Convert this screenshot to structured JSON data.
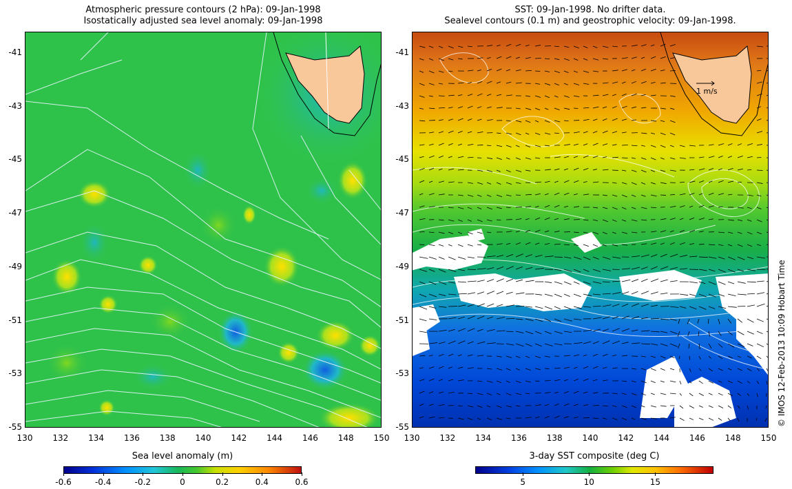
{
  "left_panel": {
    "title_line1": "Atmospheric pressure contours (2 hPa): 09-Jan-1998",
    "title_line2": "Isostatically adjusted sea level anomaly: 09-Jan-1998",
    "colorbar_label": "Sea level anomaly (m)",
    "colorbar_ticks": [
      "-0.6",
      "-0.4",
      "-0.2",
      "0",
      "0.2",
      "0.4",
      "0.6"
    ]
  },
  "right_panel": {
    "title_line1": "SST: 09-Jan-1998. No drifter data.",
    "title_line2": "Sealevel contours (0.1 m) and geostrophic velocity: 09-Jan-1998.",
    "colorbar_label": "3-day SST composite (deg C)",
    "colorbar_ticks": [
      "5",
      "10",
      "15"
    ],
    "velocity_scale_label": "1 m/s"
  },
  "axes": {
    "x_ticks": [
      "130",
      "132",
      "134",
      "136",
      "138",
      "140",
      "142",
      "144",
      "146",
      "148",
      "150"
    ],
    "y_ticks": [
      "-41",
      "-43",
      "-45",
      "-47",
      "-49",
      "-51",
      "-53",
      "-55"
    ],
    "x_range": [
      130,
      150
    ],
    "y_range": [
      -55,
      -40.2
    ]
  },
  "credit": "© IMOS 12-Feb-2013 10:09 Hobart Time",
  "colors": {
    "land": "#f9c89a",
    "sst_warm": "#e07010",
    "sst_cool": "#0050e0",
    "sla_base": "#2fc24a"
  }
}
